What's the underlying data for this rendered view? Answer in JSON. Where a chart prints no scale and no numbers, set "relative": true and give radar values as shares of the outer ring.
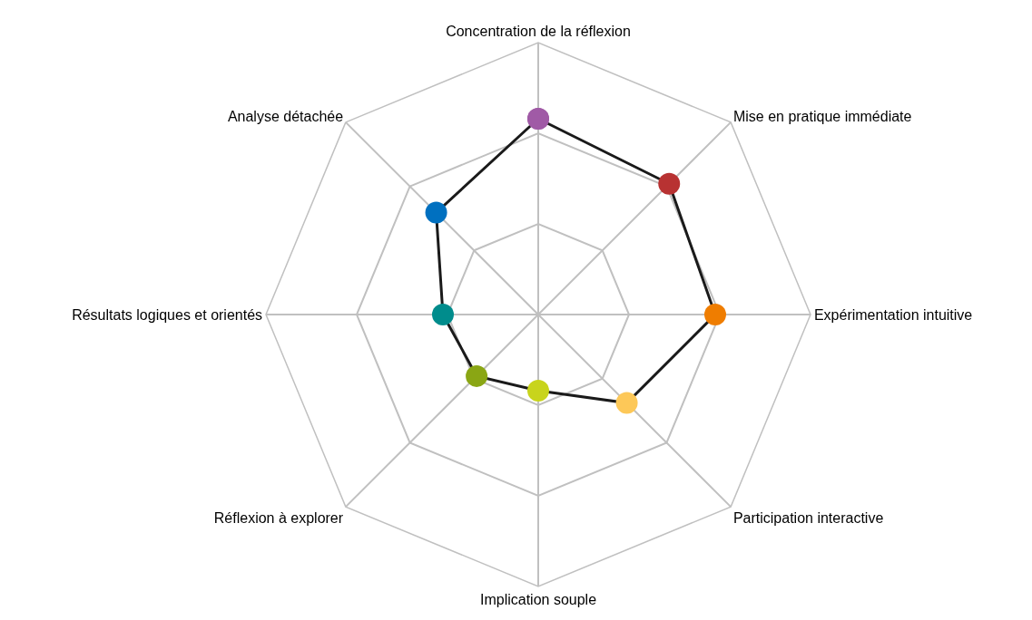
{
  "chart_data": {
    "type": "radar",
    "relative": true,
    "grid": true,
    "marker": "circle",
    "line_style": "solid",
    "categories": [
      "Concentration de la réflexion",
      "Mise en pratique immédiate",
      "Expérimentation intuitive",
      "Participation interactive",
      "Implication souple",
      "Réflexion à explorer",
      "Résultats logiques et orientés",
      "Analyse détachée"
    ],
    "series": [
      {
        "color": "#1a1a1a",
        "values": [
          0.72,
          0.68,
          0.65,
          0.46,
          0.28,
          0.32,
          0.35,
          0.53
        ],
        "colors": [
          "#a05aa6",
          "#b83232",
          "#ef7d00",
          "#fdc858",
          "#c8d41c",
          "#8aa614",
          "#008c8c",
          "#0070c0"
        ]
      }
    ]
  }
}
